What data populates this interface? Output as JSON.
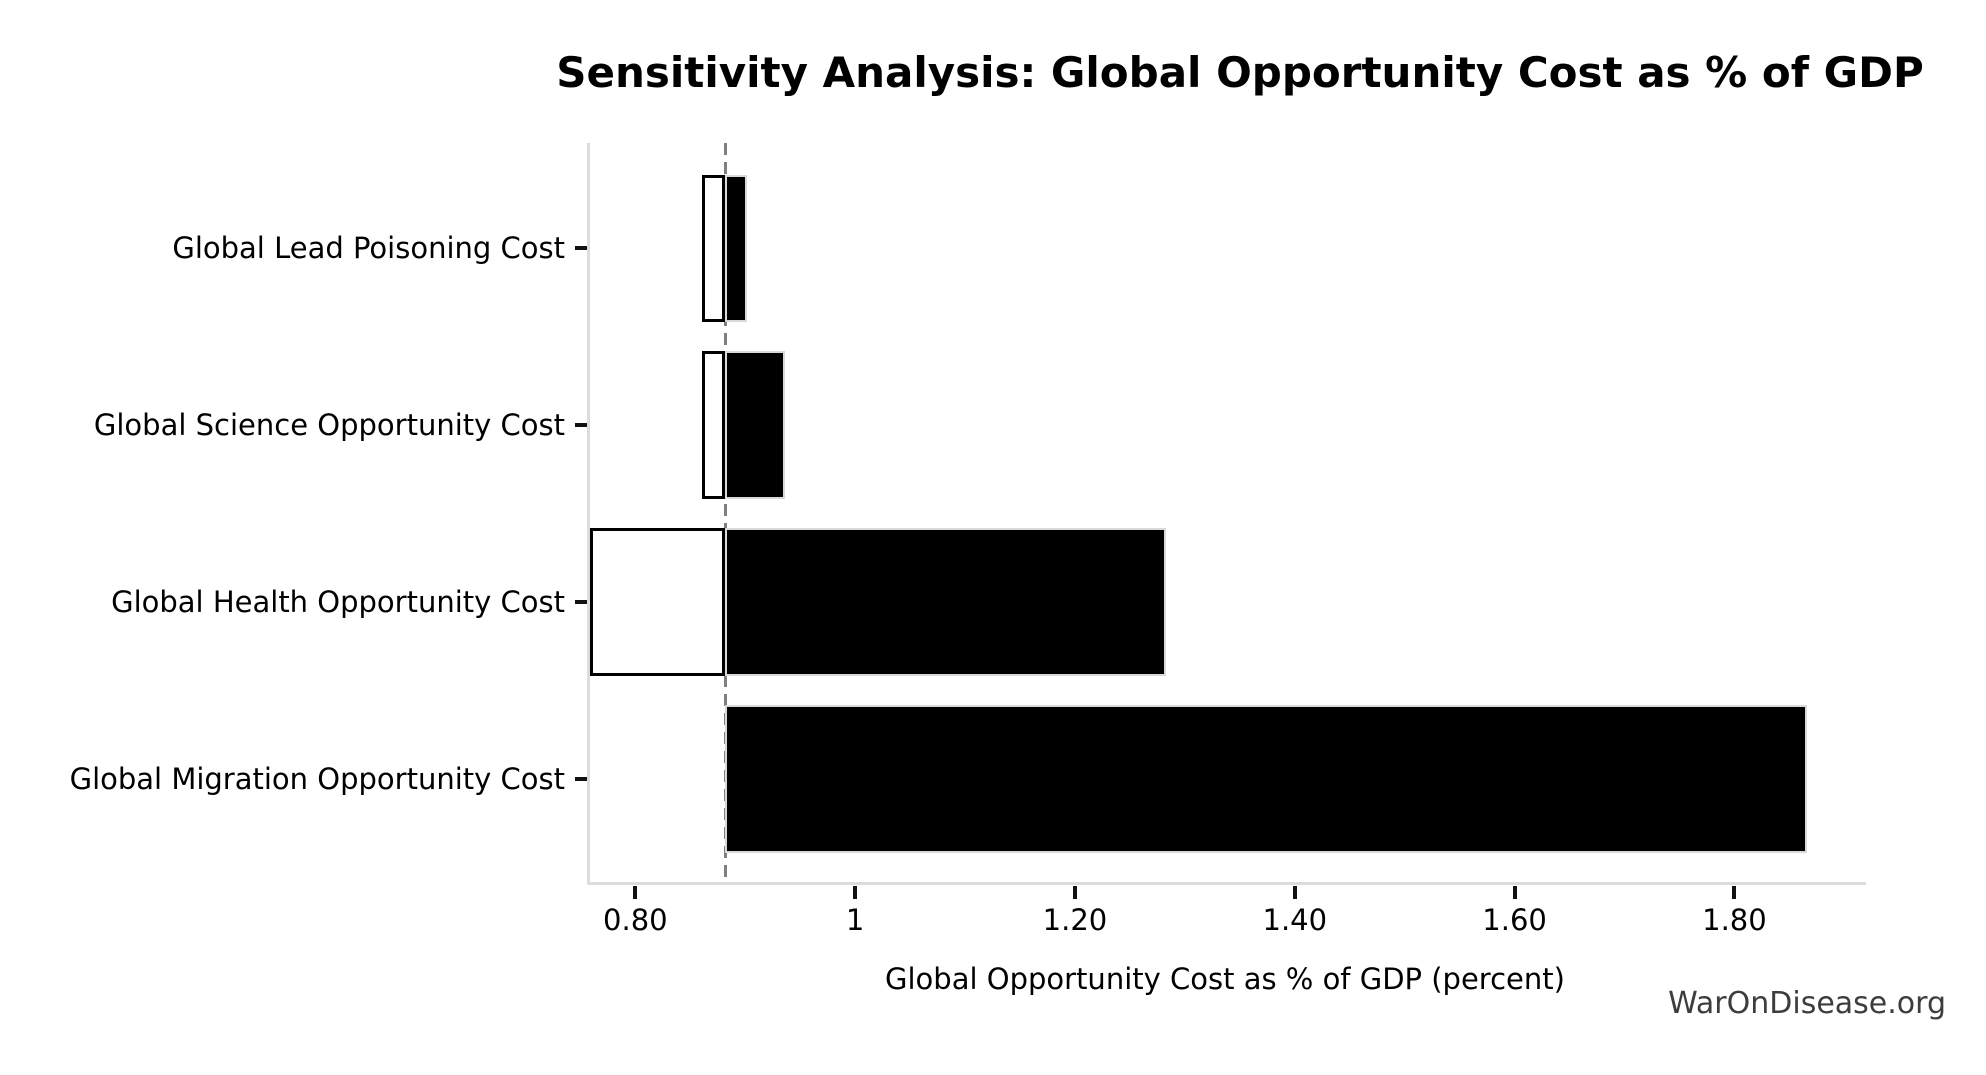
{
  "title": "Sensitivity Analysis: Global Opportunity Cost as % of GDP",
  "watermark": "WarOnDisease.org",
  "chart_data": {
    "type": "bar",
    "orientation": "horizontal",
    "title": "Sensitivity Analysis: Global Opportunity Cost as % of GDP",
    "xlabel": "Global Opportunity Cost as % of GDP (percent)",
    "ylabel": "",
    "categories": [
      "Global Lead Poisoning Cost",
      "Global Science Opportunity Cost",
      "Global Health Opportunity Cost",
      "Global Migration Opportunity Cost"
    ],
    "baseline": 0.879,
    "series": [
      {
        "name": "low",
        "values": [
          0.858,
          0.858,
          0.756,
          0.879
        ]
      },
      {
        "name": "high",
        "values": [
          0.899,
          0.933,
          1.28,
          1.863
        ]
      }
    ],
    "xlim": [
      0.756,
      1.917
    ],
    "xticks": {
      "values": [
        0.8,
        1.0,
        1.2,
        1.4,
        1.6,
        1.8
      ],
      "labels": [
        "0.80",
        "1",
        "1.20",
        "1.40",
        "1.60",
        "1.80"
      ]
    },
    "grid": false,
    "legend": false,
    "colors": {
      "low_fill": "#ffffff",
      "low_edge": "#000000",
      "high_fill": "#000000",
      "baseline_line": "#7f7f7f",
      "spine": "#dcdcdc",
      "text": "#000000",
      "watermark_text": "#3d3d3d"
    }
  }
}
